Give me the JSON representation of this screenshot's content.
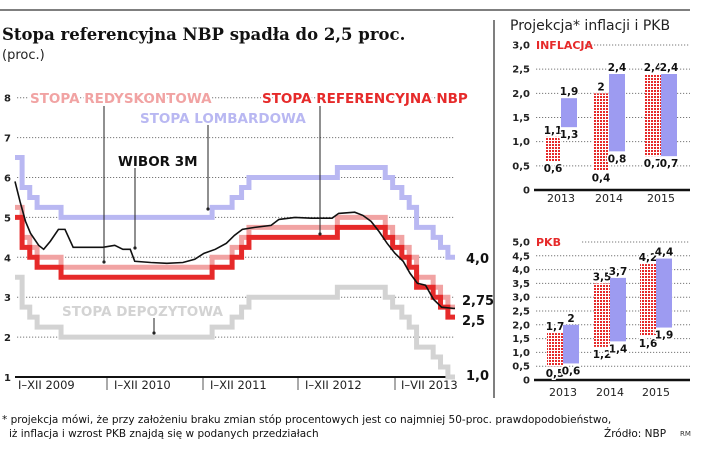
{
  "title": "Stopa referencyjna NBP spadła do 2,5 proc.",
  "subtitle": "(proc.)",
  "footnote": [
    "* projekcja mówi, że przy założeniu braku zmian stóp procentowych jest co najmniej 50-proc. prawdopodobieństwo,",
    "iż inflacja i wzrost PKB znajdą się w podanych przedziałach"
  ],
  "source": "Źródło: NBP",
  "author": "RM",
  "chart_data": [
    {
      "type": "line",
      "step": true,
      "ylim": [
        1,
        8
      ],
      "yticks": [
        "1",
        "2",
        "3",
        "4",
        "5",
        "6",
        "7",
        "8"
      ],
      "xlim": [
        "2009-01-01",
        "2013-07-31"
      ],
      "xticklabels": [
        "I–XII 2009",
        "I–XII 2010",
        "I–XII 2011",
        "I–XII 2012",
        "I–VII 2013"
      ],
      "grid": true,
      "colors": {
        "lombard": "#b9b8f2",
        "rediscount": "#f1a3a3",
        "reference": "#e62a2a",
        "deposit": "#d3d3d3",
        "wibor": "#111111"
      },
      "end_labels": {
        "lombard": "4,0",
        "rediscount": "2,75",
        "reference": "2,5",
        "deposit": "1,0"
      },
      "series": [
        {
          "key": "lombard",
          "name": "STOPA LOMBARDOWA",
          "points": [
            [
              "2009-01-01",
              6.5
            ],
            [
              "2009-01-28",
              5.75
            ],
            [
              "2009-02-26",
              5.5
            ],
            [
              "2009-03-26",
              5.25
            ],
            [
              "2009-06-25",
              5.0
            ],
            [
              "2011-01-20",
              5.25
            ],
            [
              "2011-04-06",
              5.5
            ],
            [
              "2011-05-12",
              5.75
            ],
            [
              "2011-06-09",
              6.0
            ],
            [
              "2012-05-10",
              6.25
            ],
            [
              "2012-11-08",
              6.0
            ],
            [
              "2012-12-06",
              5.75
            ],
            [
              "2013-01-10",
              5.5
            ],
            [
              "2013-02-07",
              5.25
            ],
            [
              "2013-03-07",
              4.75
            ],
            [
              "2013-05-09",
              4.5
            ],
            [
              "2013-06-06",
              4.25
            ],
            [
              "2013-07-04",
              4.0
            ]
          ]
        },
        {
          "key": "deposit",
          "name": "STOPA DEPOZYTOWA",
          "points": [
            [
              "2009-01-01",
              3.5
            ],
            [
              "2009-01-28",
              2.75
            ],
            [
              "2009-02-26",
              2.5
            ],
            [
              "2009-03-26",
              2.25
            ],
            [
              "2009-06-25",
              2.0
            ],
            [
              "2011-01-20",
              2.25
            ],
            [
              "2011-04-06",
              2.5
            ],
            [
              "2011-05-12",
              2.75
            ],
            [
              "2011-06-09",
              3.0
            ],
            [
              "2012-05-10",
              3.25
            ],
            [
              "2012-11-08",
              3.0
            ],
            [
              "2012-12-06",
              2.75
            ],
            [
              "2013-01-10",
              2.5
            ],
            [
              "2013-02-07",
              2.25
            ],
            [
              "2013-03-07",
              1.75
            ],
            [
              "2013-05-09",
              1.5
            ],
            [
              "2013-06-06",
              1.25
            ],
            [
              "2013-07-04",
              1.0
            ]
          ]
        },
        {
          "key": "rediscount",
          "name": "STOPA REDYSKONTOWA",
          "points": [
            [
              "2009-01-01",
              5.25
            ],
            [
              "2009-01-28",
              4.5
            ],
            [
              "2009-02-26",
              4.25
            ],
            [
              "2009-03-26",
              4.0
            ],
            [
              "2009-06-25",
              3.75
            ],
            [
              "2011-01-20",
              4.0
            ],
            [
              "2011-04-06",
              4.25
            ],
            [
              "2011-05-12",
              4.5
            ],
            [
              "2011-06-09",
              4.75
            ],
            [
              "2012-05-10",
              5.0
            ],
            [
              "2012-11-08",
              4.75
            ],
            [
              "2012-12-06",
              4.5
            ],
            [
              "2013-01-10",
              4.25
            ],
            [
              "2013-02-07",
              4.0
            ],
            [
              "2013-03-07",
              3.5
            ],
            [
              "2013-05-09",
              3.25
            ],
            [
              "2013-06-06",
              3.0
            ],
            [
              "2013-07-04",
              2.75
            ]
          ]
        },
        {
          "key": "reference",
          "name": "STOPA REFERENCYJNA NBP",
          "points": [
            [
              "2009-01-01",
              5.0
            ],
            [
              "2009-01-28",
              4.25
            ],
            [
              "2009-02-26",
              4.0
            ],
            [
              "2009-03-26",
              3.75
            ],
            [
              "2009-06-25",
              3.5
            ],
            [
              "2011-01-20",
              3.75
            ],
            [
              "2011-04-06",
              4.0
            ],
            [
              "2011-05-12",
              4.25
            ],
            [
              "2011-06-09",
              4.5
            ],
            [
              "2012-05-10",
              4.75
            ],
            [
              "2012-11-08",
              4.5
            ],
            [
              "2012-12-06",
              4.25
            ],
            [
              "2013-01-10",
              4.0
            ],
            [
              "2013-02-07",
              3.75
            ],
            [
              "2013-03-07",
              3.25
            ],
            [
              "2013-05-09",
              3.0
            ],
            [
              "2013-06-06",
              2.75
            ],
            [
              "2013-07-04",
              2.5
            ]
          ]
        },
        {
          "key": "wibor",
          "name": "WIBOR 3M",
          "step": false,
          "points": [
            [
              "2009-01-01",
              5.9
            ],
            [
              "2009-01-20",
              5.4
            ],
            [
              "2009-02-10",
              4.9
            ],
            [
              "2009-03-01",
              4.6
            ],
            [
              "2009-04-01",
              4.3
            ],
            [
              "2009-04-20",
              4.2
            ],
            [
              "2009-05-15",
              4.4
            ],
            [
              "2009-06-15",
              4.7
            ],
            [
              "2009-07-10",
              4.7
            ],
            [
              "2009-08-10",
              4.25
            ],
            [
              "2009-10-01",
              4.25
            ],
            [
              "2009-12-01",
              4.25
            ],
            [
              "2010-01-15",
              4.3
            ],
            [
              "2010-02-15",
              4.2
            ],
            [
              "2010-03-15",
              4.2
            ],
            [
              "2010-04-01",
              3.9
            ],
            [
              "2010-06-01",
              3.87
            ],
            [
              "2010-08-01",
              3.85
            ],
            [
              "2010-10-01",
              3.87
            ],
            [
              "2010-11-15",
              3.95
            ],
            [
              "2010-12-20",
              4.1
            ],
            [
              "2011-02-01",
              4.2
            ],
            [
              "2011-03-15",
              4.35
            ],
            [
              "2011-04-15",
              4.55
            ],
            [
              "2011-05-15",
              4.7
            ],
            [
              "2011-07-01",
              4.75
            ],
            [
              "2011-09-01",
              4.8
            ],
            [
              "2011-10-01",
              4.95
            ],
            [
              "2011-12-01",
              5.0
            ],
            [
              "2012-02-01",
              4.98
            ],
            [
              "2012-04-20",
              4.98
            ],
            [
              "2012-05-15",
              5.1
            ],
            [
              "2012-07-15",
              5.13
            ],
            [
              "2012-08-15",
              5.05
            ],
            [
              "2012-09-15",
              4.9
            ],
            [
              "2012-10-15",
              4.65
            ],
            [
              "2012-11-15",
              4.35
            ],
            [
              "2012-12-15",
              4.1
            ],
            [
              "2013-01-15",
              3.9
            ],
            [
              "2013-02-10",
              3.6
            ],
            [
              "2013-03-10",
              3.35
            ],
            [
              "2013-04-10",
              3.3
            ],
            [
              "2013-05-10",
              2.95
            ],
            [
              "2013-06-10",
              2.75
            ],
            [
              "2013-07-25",
              2.72
            ]
          ]
        }
      ]
    },
    {
      "type": "bar",
      "range_bars": true,
      "title": "Projekcja* inflacji i PKB",
      "label": "INFLACJA",
      "categories": [
        "2013",
        "2014",
        "2015"
      ],
      "ylim": [
        0,
        3.0
      ],
      "yticks": [
        "0",
        "0,5",
        "1,0",
        "1,5",
        "2,0",
        "2,5",
        "3,0"
      ],
      "grid": true,
      "colors": [
        "#e62a2a",
        "#9d9bf1"
      ],
      "series": [
        {
          "pattern": "red-dotted",
          "low": [
            0.6,
            0.4,
            0.7
          ],
          "high": [
            1.1,
            2.0,
            2.4
          ],
          "low_labels": [
            "0,6",
            "0,4",
            "0,7"
          ],
          "high_labels": [
            "1,1",
            "2",
            "2,4"
          ]
        },
        {
          "pattern": "solid-blue",
          "low": [
            1.3,
            0.8,
            0.7
          ],
          "high": [
            1.9,
            2.4,
            2.4
          ],
          "low_labels": [
            "1,3",
            "0,8",
            "0,7"
          ],
          "high_labels": [
            "1,9",
            "2,4",
            "2,4"
          ]
        }
      ]
    },
    {
      "type": "bar",
      "range_bars": true,
      "label": "PKB",
      "categories": [
        "2013",
        "2014",
        "2015"
      ],
      "ylim": [
        0,
        5.0
      ],
      "yticks": [
        "0",
        "0,5",
        "1,0",
        "1,5",
        "2,0",
        "2,5",
        "3,0",
        "3,5",
        "4,0",
        "4,5",
        "5,0"
      ],
      "grid": true,
      "colors": [
        "#e62a2a",
        "#9d9bf1"
      ],
      "series": [
        {
          "pattern": "red-dotted",
          "low": [
            0.5,
            1.2,
            1.6
          ],
          "high": [
            1.7,
            3.5,
            4.2
          ],
          "low_labels": [
            "0,5",
            "1,2",
            "1,6"
          ],
          "high_labels": [
            "1,7",
            "3,5",
            "4,2"
          ]
        },
        {
          "pattern": "solid-blue",
          "low": [
            0.6,
            1.4,
            1.9
          ],
          "high": [
            2.0,
            3.7,
            4.4
          ],
          "low_labels": [
            "0,6",
            "1,4",
            "1,9"
          ],
          "high_labels": [
            "2",
            "3,7",
            "4,4"
          ]
        }
      ]
    }
  ]
}
